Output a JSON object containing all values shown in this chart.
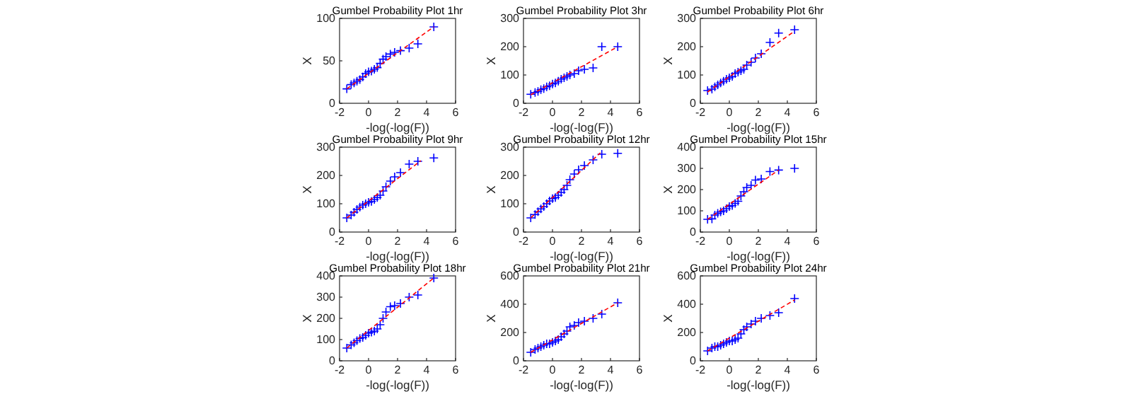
{
  "chart_data": [
    {
      "type": "scatter",
      "title": "Gumbel Probability Plot 1hr",
      "xlabel": "-log(-log(F))",
      "ylabel": "X",
      "xlim": [
        -2,
        6
      ],
      "xticks": [
        -2,
        0,
        2,
        4,
        6
      ],
      "ylim": [
        0,
        100
      ],
      "yticks": [
        0,
        50,
        100
      ],
      "series": [
        {
          "type": "scatter",
          "marker": "cross",
          "color": "#0000ff",
          "x": [
            -1.5,
            -1.2,
            -1.0,
            -0.8,
            -0.6,
            -0.4,
            -0.2,
            0,
            0.2,
            0.4,
            0.6,
            0.8,
            1.0,
            1.2,
            1.5,
            1.8,
            2.2,
            2.8,
            3.4,
            4.5
          ],
          "values": [
            17,
            22,
            24,
            26,
            28,
            31,
            35,
            37,
            38,
            40,
            42,
            47,
            52,
            55,
            58,
            60,
            62,
            65,
            70,
            90
          ]
        },
        {
          "type": "line",
          "line_style": "dashed",
          "color": "#ff0000",
          "x": [
            -1.5,
            4.5
          ],
          "values": [
            17,
            90
          ]
        }
      ]
    },
    {
      "type": "scatter",
      "title": "Gumbel Probability Plot 3hr",
      "xlabel": "-log(-log(F))",
      "ylabel": "X",
      "xlim": [
        -2,
        6
      ],
      "xticks": [
        -2,
        0,
        2,
        4,
        6
      ],
      "ylim": [
        0,
        300
      ],
      "yticks": [
        0,
        100,
        200,
        300
      ],
      "series": [
        {
          "type": "scatter",
          "marker": "cross",
          "color": "#0000ff",
          "x": [
            -1.5,
            -1.2,
            -1.0,
            -0.8,
            -0.6,
            -0.4,
            -0.2,
            0,
            0.2,
            0.4,
            0.6,
            0.8,
            1.0,
            1.2,
            1.5,
            1.8,
            2.2,
            2.8,
            3.4,
            4.5
          ],
          "values": [
            32,
            38,
            42,
            48,
            52,
            58,
            62,
            68,
            72,
            78,
            85,
            90,
            95,
            100,
            105,
            115,
            120,
            125,
            200,
            200
          ]
        },
        {
          "type": "line",
          "line_style": "dashed",
          "color": "#ff0000",
          "x": [
            -1.5,
            4.5
          ],
          "values": [
            30,
            200
          ]
        }
      ]
    },
    {
      "type": "scatter",
      "title": "Gumbel Probability Plot 6hr",
      "xlabel": "-log(-log(F))",
      "ylabel": "X",
      "xlim": [
        -2,
        6
      ],
      "xticks": [
        -2,
        0,
        2,
        4,
        6
      ],
      "ylim": [
        0,
        300
      ],
      "yticks": [
        0,
        100,
        200,
        300
      ],
      "series": [
        {
          "type": "scatter",
          "marker": "cross",
          "color": "#0000ff",
          "x": [
            -1.5,
            -1.2,
            -1.0,
            -0.8,
            -0.6,
            -0.4,
            -0.2,
            0,
            0.2,
            0.4,
            0.6,
            0.8,
            1.0,
            1.2,
            1.5,
            1.8,
            2.2,
            2.8,
            3.4,
            4.5
          ],
          "values": [
            45,
            50,
            58,
            65,
            72,
            78,
            85,
            90,
            95,
            105,
            110,
            115,
            120,
            135,
            145,
            160,
            175,
            215,
            248,
            260
          ]
        },
        {
          "type": "line",
          "line_style": "dashed",
          "color": "#ff0000",
          "x": [
            -1.5,
            4.5
          ],
          "values": [
            40,
            255
          ]
        }
      ]
    },
    {
      "type": "scatter",
      "title": "Gumbel Probability Plot 9hr",
      "xlabel": "-log(-log(F))",
      "ylabel": "X",
      "xlim": [
        -2,
        6
      ],
      "xticks": [
        -2,
        0,
        2,
        4,
        6
      ],
      "ylim": [
        0,
        300
      ],
      "yticks": [
        0,
        100,
        200,
        300
      ],
      "series": [
        {
          "type": "scatter",
          "marker": "cross",
          "color": "#0000ff",
          "x": [
            -1.5,
            -1.2,
            -1.0,
            -0.8,
            -0.6,
            -0.4,
            -0.2,
            0,
            0.2,
            0.4,
            0.6,
            0.8,
            1.0,
            1.2,
            1.5,
            1.8,
            2.2,
            2.8,
            3.4,
            4.5
          ],
          "values": [
            50,
            60,
            70,
            80,
            88,
            95,
            100,
            105,
            108,
            115,
            122,
            130,
            145,
            160,
            180,
            195,
            210,
            240,
            250,
            262
          ]
        },
        {
          "type": "line",
          "line_style": "dashed",
          "color": "#ff0000",
          "x": [
            -1.5,
            3.6
          ],
          "values": [
            50,
            252
          ]
        }
      ]
    },
    {
      "type": "scatter",
      "title": "Gumbel Probability Plot 12hr",
      "xlabel": "-log(-log(F))",
      "ylabel": "X",
      "xlim": [
        -2,
        6
      ],
      "xticks": [
        -2,
        0,
        2,
        4,
        6
      ],
      "ylim": [
        0,
        300
      ],
      "yticks": [
        0,
        100,
        200,
        300
      ],
      "series": [
        {
          "type": "scatter",
          "marker": "cross",
          "color": "#0000ff",
          "x": [
            -1.5,
            -1.2,
            -1.0,
            -0.8,
            -0.6,
            -0.4,
            -0.2,
            0,
            0.2,
            0.4,
            0.6,
            0.8,
            1.0,
            1.2,
            1.5,
            1.8,
            2.2,
            2.8,
            3.4,
            4.5
          ],
          "values": [
            50,
            62,
            72,
            82,
            90,
            100,
            110,
            118,
            122,
            130,
            140,
            150,
            165,
            185,
            205,
            220,
            235,
            255,
            275,
            278
          ]
        },
        {
          "type": "line",
          "line_style": "dashed",
          "color": "#ff0000",
          "x": [
            -1.5,
            3.3
          ],
          "values": [
            50,
            280
          ]
        }
      ]
    },
    {
      "type": "scatter",
      "title": "Gumbel Probability Plot 15hr",
      "xlabel": "-log(-log(F))",
      "ylabel": "X",
      "xlim": [
        -2,
        6
      ],
      "xticks": [
        -2,
        0,
        2,
        4,
        6
      ],
      "ylim": [
        0,
        400
      ],
      "yticks": [
        0,
        100,
        200,
        300,
        400
      ],
      "series": [
        {
          "type": "scatter",
          "marker": "cross",
          "color": "#0000ff",
          "x": [
            -1.5,
            -1.2,
            -1.0,
            -0.8,
            -0.6,
            -0.4,
            -0.2,
            0,
            0.2,
            0.4,
            0.6,
            0.8,
            1.0,
            1.2,
            1.5,
            1.8,
            2.2,
            2.8,
            3.4,
            4.5
          ],
          "values": [
            60,
            62,
            80,
            88,
            95,
            100,
            110,
            120,
            125,
            135,
            145,
            170,
            190,
            210,
            220,
            245,
            250,
            285,
            292,
            300
          ]
        },
        {
          "type": "line",
          "line_style": "dashed",
          "color": "#ff0000",
          "x": [
            -1.5,
            3.4
          ],
          "values": [
            60,
            292
          ]
        }
      ]
    },
    {
      "type": "scatter",
      "title": "Gumbel Probability Plot 18hr",
      "xlabel": "-log(-log(F))",
      "ylabel": "X",
      "xlim": [
        -2,
        6
      ],
      "xticks": [
        -2,
        0,
        2,
        4,
        6
      ],
      "ylim": [
        0,
        400
      ],
      "yticks": [
        0,
        100,
        200,
        300,
        400
      ],
      "series": [
        {
          "type": "scatter",
          "marker": "cross",
          "color": "#0000ff",
          "x": [
            -1.5,
            -1.2,
            -1.0,
            -0.8,
            -0.6,
            -0.4,
            -0.2,
            0,
            0.2,
            0.4,
            0.6,
            0.8,
            1.0,
            1.2,
            1.5,
            1.8,
            2.2,
            2.8,
            3.4,
            4.5
          ],
          "values": [
            60,
            75,
            85,
            95,
            105,
            110,
            120,
            130,
            135,
            140,
            150,
            170,
            200,
            230,
            255,
            260,
            270,
            300,
            310,
            390
          ]
        },
        {
          "type": "line",
          "line_style": "dashed",
          "color": "#ff0000",
          "x": [
            -1.5,
            4.5
          ],
          "values": [
            60,
            390
          ]
        }
      ]
    },
    {
      "type": "scatter",
      "title": "Gumbel Probability Plot 21hr",
      "xlabel": "-log(-log(F))",
      "ylabel": "X",
      "xlim": [
        -2,
        6
      ],
      "xticks": [
        -2,
        0,
        2,
        4,
        6
      ],
      "ylim": [
        0,
        600
      ],
      "yticks": [
        0,
        200,
        400,
        600
      ],
      "series": [
        {
          "type": "scatter",
          "marker": "cross",
          "color": "#0000ff",
          "x": [
            -1.5,
            -1.2,
            -1.0,
            -0.8,
            -0.6,
            -0.4,
            -0.2,
            0,
            0.2,
            0.4,
            0.6,
            0.8,
            1.0,
            1.2,
            1.5,
            1.8,
            2.2,
            2.8,
            3.4,
            4.5
          ],
          "values": [
            60,
            80,
            90,
            100,
            110,
            120,
            120,
            130,
            140,
            150,
            170,
            190,
            210,
            240,
            250,
            270,
            280,
            300,
            330,
            410
          ]
        },
        {
          "type": "line",
          "line_style": "dashed",
          "color": "#ff0000",
          "x": [
            -1.5,
            4.5
          ],
          "values": [
            60,
            410
          ]
        }
      ]
    },
    {
      "type": "scatter",
      "title": "Gumbel Probability Plot 24hr",
      "xlabel": "-log(-log(F))",
      "ylabel": "X",
      "xlim": [
        -2,
        6
      ],
      "xticks": [
        -2,
        0,
        2,
        4,
        6
      ],
      "ylim": [
        0,
        600
      ],
      "yticks": [
        0,
        200,
        400,
        600
      ],
      "series": [
        {
          "type": "scatter",
          "marker": "cross",
          "color": "#0000ff",
          "x": [
            -1.5,
            -1.2,
            -1.0,
            -0.8,
            -0.6,
            -0.4,
            -0.2,
            0,
            0.2,
            0.4,
            0.6,
            0.8,
            1.0,
            1.2,
            1.5,
            1.8,
            2.2,
            2.8,
            3.4,
            4.5
          ],
          "values": [
            70,
            90,
            100,
            100,
            110,
            120,
            130,
            140,
            140,
            150,
            160,
            190,
            220,
            240,
            260,
            280,
            300,
            320,
            340,
            440
          ]
        },
        {
          "type": "line",
          "line_style": "dashed",
          "color": "#ff0000",
          "x": [
            -1.5,
            4.5
          ],
          "values": [
            70,
            430
          ]
        }
      ]
    }
  ]
}
